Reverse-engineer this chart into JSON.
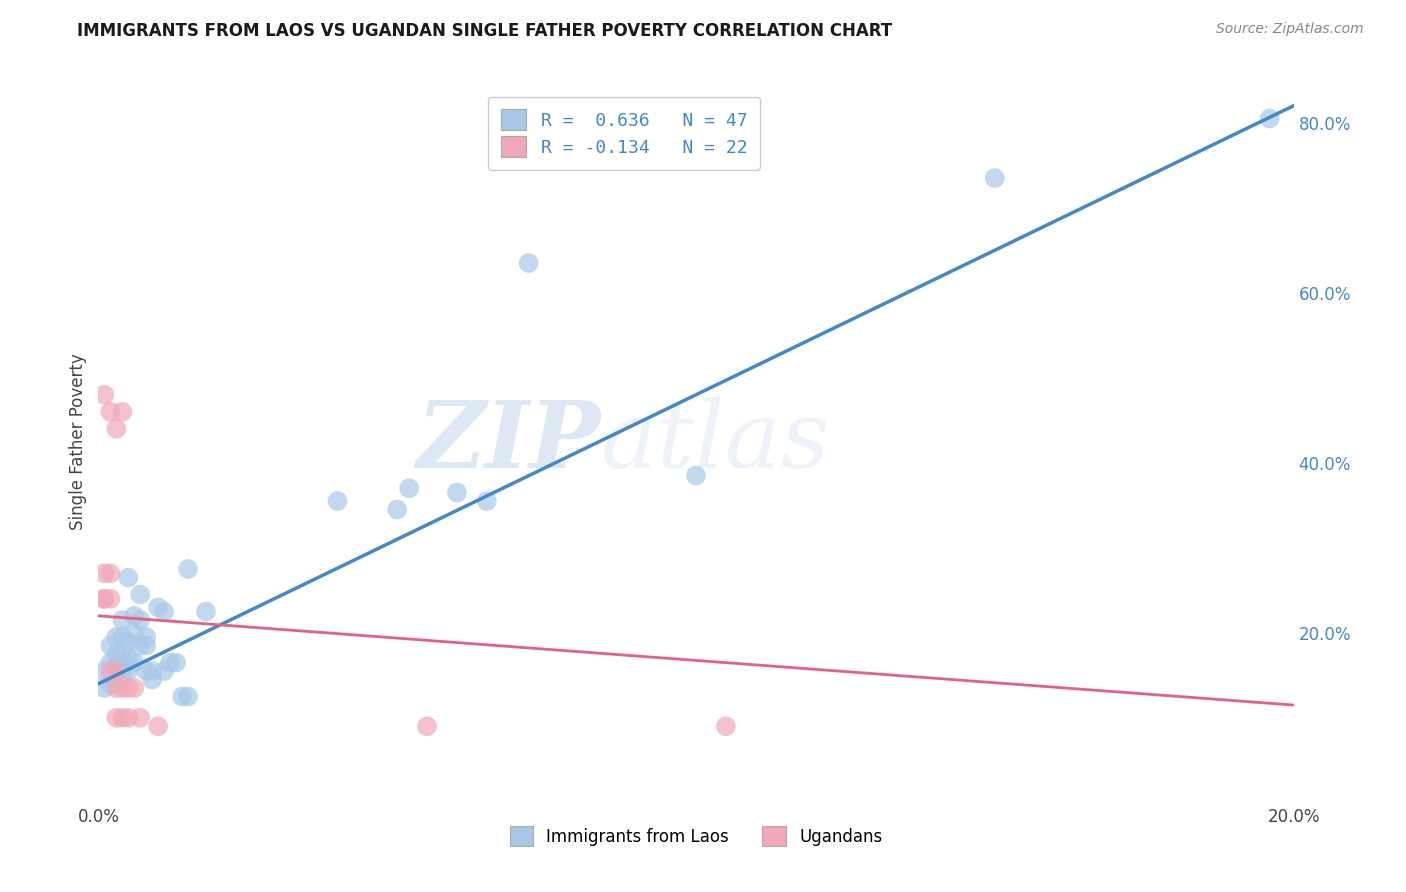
{
  "title": "IMMIGRANTS FROM LAOS VS UGANDAN SINGLE FATHER POVERTY CORRELATION CHART",
  "source": "Source: ZipAtlas.com",
  "ylabel": "Single Father Poverty",
  "xlim": [
    0.0,
    0.2
  ],
  "ylim": [
    0.0,
    0.85
  ],
  "x_ticks": [
    0.0,
    0.04,
    0.08,
    0.12,
    0.16,
    0.2
  ],
  "x_tick_labels": [
    "0.0%",
    "",
    "",
    "",
    "",
    "20.0%"
  ],
  "y_ticks_right": [
    0.2,
    0.4,
    0.6,
    0.8
  ],
  "y_tick_labels_right": [
    "20.0%",
    "40.0%",
    "60.0%",
    "80.0%"
  ],
  "watermark_zip": "ZIP",
  "watermark_atlas": "atlas",
  "legend_label_blue": "R =  0.636   N = 47",
  "legend_label_pink": "R = -0.134   N = 22",
  "legend_label_immigrants": "Immigrants from Laos",
  "legend_label_ugandans": "Ugandans",
  "blue_color": "#a8c8e8",
  "pink_color": "#f0a8b8",
  "blue_line_color": "#4488cc",
  "pink_line_color": "#e86080",
  "blue_line": [
    [
      0.0,
      0.14
    ],
    [
      0.2,
      0.82
    ]
  ],
  "pink_line": [
    [
      0.0,
      0.22
    ],
    [
      0.2,
      0.115
    ]
  ],
  "blue_scatter": [
    [
      0.001,
      0.135
    ],
    [
      0.001,
      0.155
    ],
    [
      0.002,
      0.14
    ],
    [
      0.002,
      0.165
    ],
    [
      0.002,
      0.185
    ],
    [
      0.003,
      0.145
    ],
    [
      0.003,
      0.16
    ],
    [
      0.003,
      0.175
    ],
    [
      0.003,
      0.195
    ],
    [
      0.004,
      0.15
    ],
    [
      0.004,
      0.165
    ],
    [
      0.004,
      0.18
    ],
    [
      0.004,
      0.195
    ],
    [
      0.004,
      0.215
    ],
    [
      0.005,
      0.155
    ],
    [
      0.005,
      0.17
    ],
    [
      0.005,
      0.19
    ],
    [
      0.005,
      0.265
    ],
    [
      0.006,
      0.165
    ],
    [
      0.006,
      0.2
    ],
    [
      0.006,
      0.22
    ],
    [
      0.007,
      0.185
    ],
    [
      0.007,
      0.215
    ],
    [
      0.007,
      0.245
    ],
    [
      0.008,
      0.155
    ],
    [
      0.008,
      0.185
    ],
    [
      0.008,
      0.195
    ],
    [
      0.009,
      0.145
    ],
    [
      0.009,
      0.155
    ],
    [
      0.01,
      0.23
    ],
    [
      0.011,
      0.155
    ],
    [
      0.011,
      0.225
    ],
    [
      0.012,
      0.165
    ],
    [
      0.013,
      0.165
    ],
    [
      0.014,
      0.125
    ],
    [
      0.015,
      0.125
    ],
    [
      0.015,
      0.275
    ],
    [
      0.018,
      0.225
    ],
    [
      0.04,
      0.355
    ],
    [
      0.05,
      0.345
    ],
    [
      0.06,
      0.365
    ],
    [
      0.065,
      0.355
    ],
    [
      0.072,
      0.635
    ],
    [
      0.052,
      0.37
    ],
    [
      0.1,
      0.385
    ],
    [
      0.15,
      0.735
    ],
    [
      0.196,
      0.805
    ]
  ],
  "pink_scatter": [
    [
      0.001,
      0.48
    ],
    [
      0.002,
      0.46
    ],
    [
      0.003,
      0.44
    ],
    [
      0.004,
      0.46
    ],
    [
      0.005,
      0.135
    ],
    [
      0.003,
      0.135
    ],
    [
      0.001,
      0.27
    ],
    [
      0.002,
      0.27
    ],
    [
      0.001,
      0.24
    ],
    [
      0.001,
      0.24
    ],
    [
      0.002,
      0.24
    ],
    [
      0.002,
      0.155
    ],
    [
      0.003,
      0.155
    ],
    [
      0.003,
      0.1
    ],
    [
      0.004,
      0.1
    ],
    [
      0.005,
      0.1
    ],
    [
      0.004,
      0.135
    ],
    [
      0.006,
      0.135
    ],
    [
      0.007,
      0.1
    ],
    [
      0.01,
      0.09
    ],
    [
      0.055,
      0.09
    ],
    [
      0.105,
      0.09
    ]
  ],
  "background_color": "#ffffff",
  "grid_color": "#cccccc"
}
